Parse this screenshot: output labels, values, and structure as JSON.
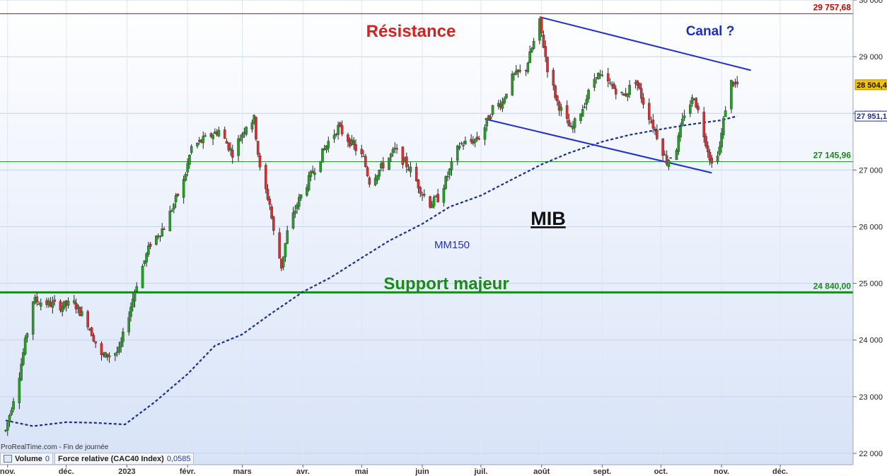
{
  "chart_data": {
    "type": "candlestick",
    "title": "MIB",
    "ylim": [
      21800,
      30000
    ],
    "y_ticks": [
      "22 000",
      "23 000",
      "24 000",
      "25 000",
      "26 000",
      "27 000",
      "28 000",
      "29 000",
      "30 000"
    ],
    "x_ticks": [
      "nov.",
      "déc.",
      "2023",
      "févr.",
      "mars",
      "avr.",
      "mai",
      "juin",
      "juil.",
      "août",
      "sept.",
      "oct.",
      "nov.",
      "déc."
    ],
    "levels": [
      {
        "name": "resistance",
        "value": 29757.68,
        "label": "29 757,68",
        "color": "#cc0000"
      },
      {
        "name": "support-line",
        "value": 27145.96,
        "label": "27 145,96",
        "color": "#1a8a1a"
      },
      {
        "name": "support-major",
        "value": 24840.0,
        "label": "24 840,00",
        "color": "#1a8a1a"
      }
    ],
    "last_price": {
      "label": "28 504,4",
      "value": 28504.4
    },
    "ma150_last": {
      "label": "27 951,1",
      "value": 27951.1
    },
    "ma150_label": "MM150",
    "annotations": {
      "resistance": "Résistance",
      "support": "Support majeur",
      "canal": "Canal ?"
    },
    "channel": {
      "upper": [
        [
          "2023-07-31",
          29700
        ],
        [
          "2023-11-16",
          28760
        ]
      ],
      "lower": [
        [
          "2023-07-03",
          27900
        ],
        [
          "2023-10-27",
          26950
        ]
      ]
    },
    "ma150": [
      [
        "2022-10-31",
        22580
      ],
      [
        "2022-11-14",
        22480
      ],
      [
        "2022-12-01",
        22550
      ],
      [
        "2022-12-15",
        22540
      ],
      [
        "2022-12-31",
        22510
      ],
      [
        "2023-01-15",
        22900
      ],
      [
        "2023-02-01",
        23400
      ],
      [
        "2023-02-15",
        23900
      ],
      [
        "2023-03-01",
        24100
      ],
      [
        "2023-03-15",
        24450
      ],
      [
        "2023-04-01",
        24850
      ],
      [
        "2023-04-15",
        25100
      ],
      [
        "2023-05-01",
        25450
      ],
      [
        "2023-05-15",
        25750
      ],
      [
        "2023-06-01",
        26050
      ],
      [
        "2023-06-15",
        26350
      ],
      [
        "2023-07-01",
        26550
      ],
      [
        "2023-07-15",
        26800
      ],
      [
        "2023-08-01",
        27100
      ],
      [
        "2023-08-15",
        27300
      ],
      [
        "2023-09-01",
        27500
      ],
      [
        "2023-09-15",
        27620
      ],
      [
        "2023-10-01",
        27720
      ],
      [
        "2023-10-15",
        27800
      ],
      [
        "2023-11-01",
        27880
      ],
      [
        "2023-11-09",
        27951
      ]
    ],
    "anchors": [
      [
        "2022-10-31",
        22400
      ],
      [
        "2022-11-07",
        23400
      ],
      [
        "2022-11-14",
        24700
      ],
      [
        "2022-11-28",
        24600
      ],
      [
        "2022-12-05",
        24650
      ],
      [
        "2022-12-12",
        24300
      ],
      [
        "2022-12-19",
        23700
      ],
      [
        "2022-12-28",
        23800
      ],
      [
        "2023-01-06",
        25000
      ],
      [
        "2023-01-13",
        25700
      ],
      [
        "2023-01-20",
        26000
      ],
      [
        "2023-01-30",
        26800
      ],
      [
        "2023-02-03",
        27400
      ],
      [
        "2023-02-10",
        27550
      ],
      [
        "2023-02-17",
        27700
      ],
      [
        "2023-02-24",
        27300
      ],
      [
        "2023-03-03",
        27800
      ],
      [
        "2023-03-07",
        27900
      ],
      [
        "2023-03-10",
        27000
      ],
      [
        "2023-03-15",
        26400
      ],
      [
        "2023-03-17",
        25900
      ],
      [
        "2023-03-21",
        25300
      ],
      [
        "2023-03-24",
        25900
      ],
      [
        "2023-03-29",
        26400
      ],
      [
        "2023-04-05",
        26900
      ],
      [
        "2023-04-14",
        27500
      ],
      [
        "2023-04-19",
        27750
      ],
      [
        "2023-04-25",
        27500
      ],
      [
        "2023-05-02",
        27200
      ],
      [
        "2023-05-05",
        26800
      ],
      [
        "2023-05-10",
        27000
      ],
      [
        "2023-05-18",
        27350
      ],
      [
        "2023-05-26",
        27000
      ],
      [
        "2023-06-01",
        26600
      ],
      [
        "2023-06-05",
        26400
      ],
      [
        "2023-06-09",
        26500
      ],
      [
        "2023-06-14",
        26900
      ],
      [
        "2023-06-20",
        27450
      ],
      [
        "2023-06-26",
        27500
      ],
      [
        "2023-07-01",
        27600
      ],
      [
        "2023-07-07",
        28100
      ],
      [
        "2023-07-12",
        28200
      ],
      [
        "2023-07-16",
        28600
      ],
      [
        "2023-07-20",
        28700
      ],
      [
        "2023-07-24",
        28800
      ],
      [
        "2023-07-28",
        29250
      ],
      [
        "2023-07-31",
        29600
      ],
      [
        "2023-08-04",
        28800
      ],
      [
        "2023-08-09",
        28200
      ],
      [
        "2023-08-16",
        27700
      ],
      [
        "2023-08-22",
        28100
      ],
      [
        "2023-08-29",
        28700
      ],
      [
        "2023-09-05",
        28500
      ],
      [
        "2023-09-12",
        28300
      ],
      [
        "2023-09-18",
        28600
      ],
      [
        "2023-09-22",
        28200
      ],
      [
        "2023-09-28",
        27700
      ],
      [
        "2023-10-04",
        27150
      ],
      [
        "2023-10-09",
        27400
      ],
      [
        "2023-10-13",
        28000
      ],
      [
        "2023-10-18",
        28300
      ],
      [
        "2023-10-24",
        27500
      ],
      [
        "2023-10-27",
        27100
      ],
      [
        "2023-10-31",
        27400
      ],
      [
        "2023-11-03",
        28100
      ],
      [
        "2023-11-06",
        28550
      ],
      [
        "2023-11-09",
        28504
      ]
    ]
  },
  "labels": {
    "source": "ProRealTime.com - Fin de journée",
    "volume_name": "Volume",
    "volume_value": "0",
    "rs_name": "Force relative (CAC40 Index)",
    "rs_value": "0,0585"
  },
  "colors": {
    "up": "#22a022",
    "down": "#d83030",
    "wick": "#222222",
    "ma": "#1a2e9a",
    "channel": "#1f2fd0",
    "resistance": "#cc0000",
    "support": "#1a8a1a",
    "bg_top": "#ffffff",
    "bg_bottom": "#d8e3f8"
  }
}
